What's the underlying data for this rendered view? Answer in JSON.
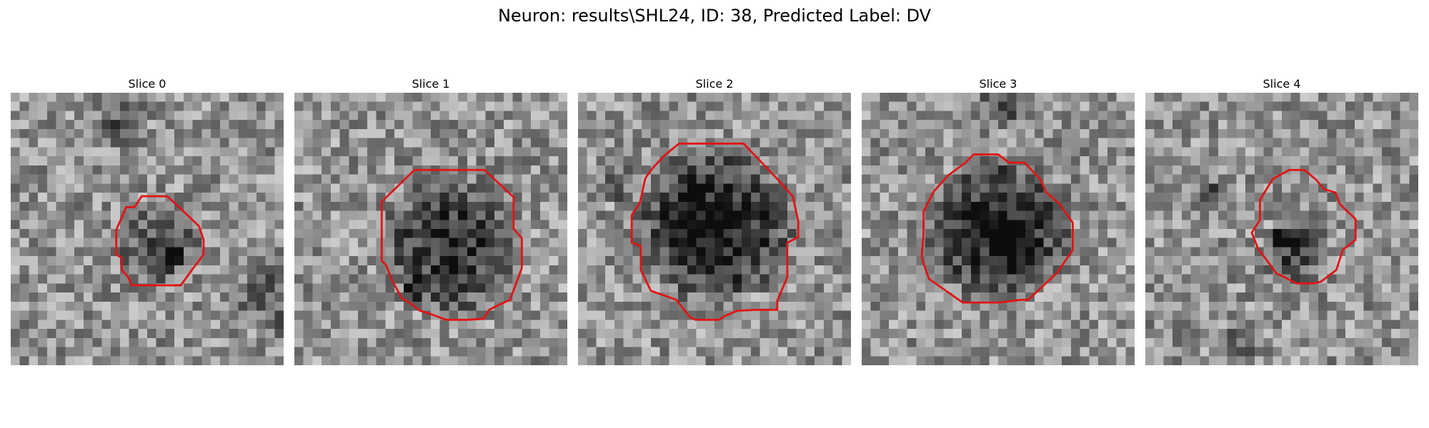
{
  "figure": {
    "title": "Neuron: results\\SHL24, ID: 38, Predicted Label: DV"
  },
  "colors": {
    "contour": "#e11414",
    "background": "#ffffff"
  },
  "slices": [
    {
      "title": "Slice 0",
      "dark_blob_strength": 0.45
    },
    {
      "title": "Slice 1",
      "dark_blob_strength": 0.65
    },
    {
      "title": "Slice 2",
      "dark_blob_strength": 0.85
    },
    {
      "title": "Slice 3",
      "dark_blob_strength": 0.8
    },
    {
      "title": "Slice 4",
      "dark_blob_strength": 0.55
    }
  ]
}
